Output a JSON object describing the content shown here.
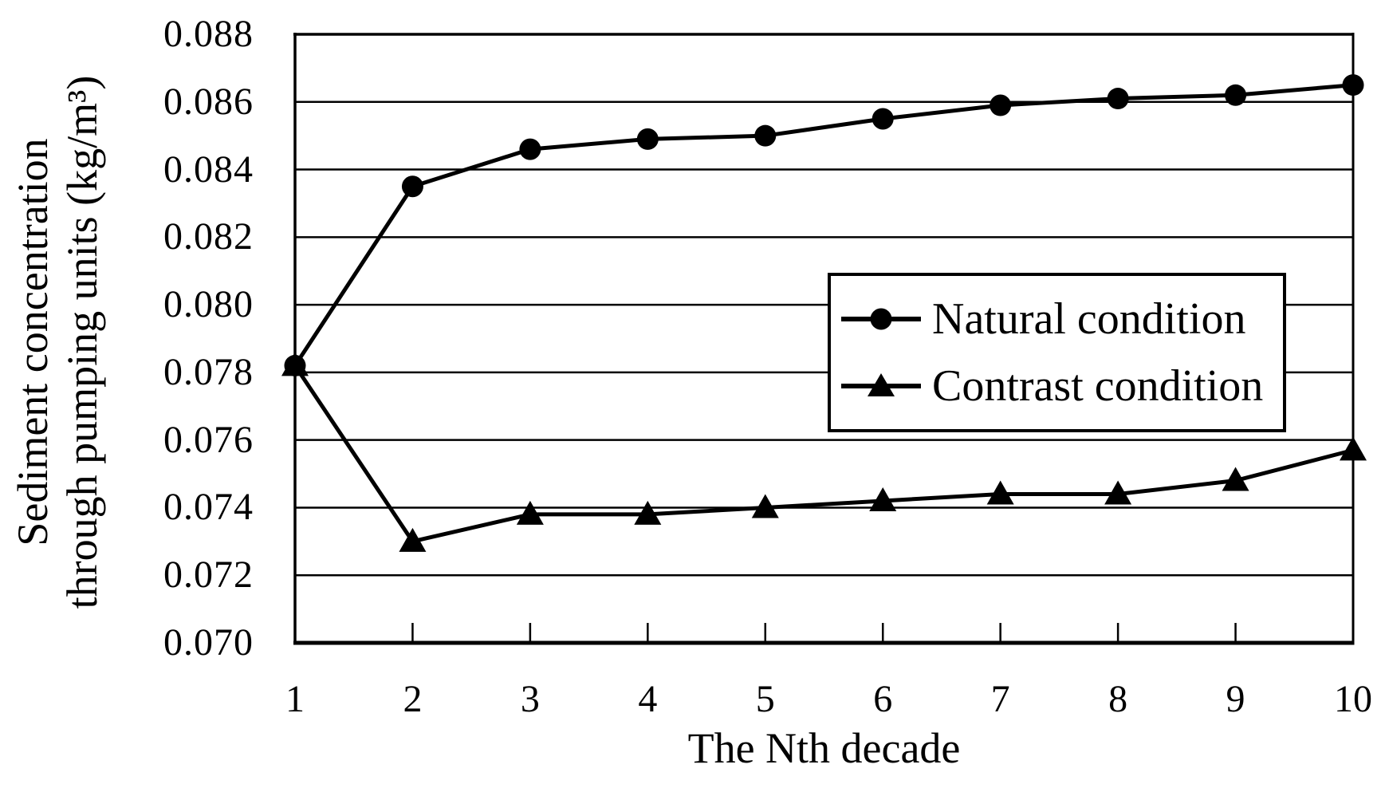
{
  "figure_background": "#ffffff",
  "chart_data": {
    "type": "line",
    "title": "",
    "xlabel": "The Nth decade",
    "ylabel_line1": "Sediment concentration",
    "ylabel_line2": "through pumping units (kg/m³)",
    "x_categories": [
      "1",
      "2",
      "3",
      "4",
      "5",
      "6",
      "7",
      "8",
      "9",
      "10"
    ],
    "series": [
      {
        "name": "Natural condition",
        "marker": "circle",
        "color": "#000000",
        "values": [
          0.0782,
          0.0835,
          0.0846,
          0.0849,
          0.085,
          0.0855,
          0.0859,
          0.0861,
          0.0862,
          0.0865
        ]
      },
      {
        "name": "Contrast condition",
        "marker": "triangle",
        "color": "#000000",
        "values": [
          0.0782,
          0.073,
          0.0738,
          0.0738,
          0.074,
          0.0742,
          0.0744,
          0.0744,
          0.0748,
          0.0757
        ]
      }
    ],
    "ylim": [
      0.07,
      0.088
    ],
    "ytick_step": 0.002,
    "yticks": [
      "0.088",
      "0.086",
      "0.084",
      "0.082",
      "0.080",
      "0.078",
      "0.076",
      "0.074",
      "0.072",
      "0.070"
    ],
    "grid": "horizontal",
    "legend_position": "middle-right",
    "line_color": "#000000",
    "background": "#ffffff"
  }
}
